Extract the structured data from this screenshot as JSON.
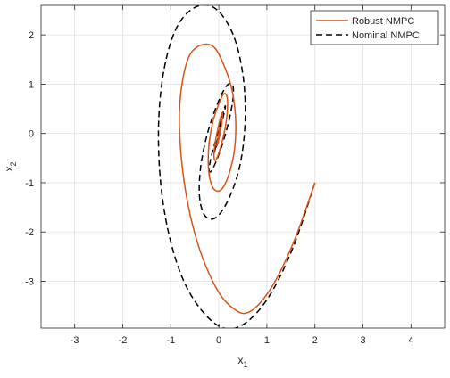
{
  "chart_data": {
    "type": "line",
    "title": "",
    "xlabel": {
      "base": "x",
      "sub": "1"
    },
    "ylabel": {
      "base": "x",
      "sub": "2"
    },
    "xlim": [
      -3.7,
      4.7
    ],
    "ylim": [
      -3.95,
      2.6
    ],
    "xticks": [
      -3,
      -2,
      -1,
      0,
      1,
      2,
      3,
      4
    ],
    "yticks": [
      -3,
      -2,
      -1,
      0,
      1,
      2
    ],
    "xtick_labels": [
      "-3",
      "-2",
      "-1",
      "0",
      "1",
      "2",
      "3",
      "4"
    ],
    "ytick_labels": [
      "-3",
      "-2",
      "-1",
      "0",
      "1",
      "2"
    ],
    "grid": true,
    "legend_position": "top-right",
    "colors": {
      "robust": "#d95319",
      "nominal": "#000000",
      "grid": "#e0e0e0",
      "axis": "#262626"
    },
    "series": [
      {
        "name": "Robust NMPC",
        "style": "solid",
        "x": [
          2.0,
          1.6,
          1.2,
          0.85,
          0.55,
          0.3,
          0.05,
          -0.2,
          -0.45,
          -0.65,
          -0.78,
          -0.82,
          -0.75,
          -0.6,
          -0.35,
          -0.1,
          0.1,
          0.27,
          0.35,
          0.33,
          0.22,
          0.07,
          -0.08,
          -0.18,
          -0.22,
          -0.2,
          -0.12,
          0.0,
          0.1,
          0.17,
          0.18,
          0.14,
          0.06,
          -0.02,
          -0.08,
          -0.1,
          -0.08,
          -0.03,
          0.03,
          0.07,
          0.08,
          0.06,
          0.02,
          -0.02,
          -0.04,
          -0.03,
          -0.01,
          0.01,
          0.02,
          0.01,
          0.0
        ],
        "y": [
          -1.0,
          -2.1,
          -2.95,
          -3.45,
          -3.65,
          -3.55,
          -3.3,
          -2.85,
          -2.2,
          -1.4,
          -0.5,
          0.4,
          1.1,
          1.6,
          1.8,
          1.75,
          1.4,
          0.9,
          0.3,
          -0.3,
          -0.8,
          -1.12,
          -1.15,
          -0.95,
          -0.6,
          -0.18,
          0.25,
          0.6,
          0.8,
          0.75,
          0.5,
          0.15,
          -0.2,
          -0.45,
          -0.55,
          -0.45,
          -0.22,
          0.05,
          0.3,
          0.42,
          0.38,
          0.2,
          -0.02,
          -0.2,
          -0.25,
          -0.18,
          -0.05,
          0.08,
          0.12,
          0.06,
          0.0
        ]
      },
      {
        "name": "Nominal NMPC",
        "style": "dashed",
        "x": [
          2.0,
          1.55,
          1.05,
          0.55,
          0.1,
          -0.35,
          -0.75,
          -1.05,
          -1.22,
          -1.25,
          -1.12,
          -0.85,
          -0.45,
          -0.05,
          0.3,
          0.5,
          0.55,
          0.45,
          0.22,
          -0.05,
          -0.28,
          -0.4,
          -0.38,
          -0.25,
          -0.05,
          0.15,
          0.28,
          0.3,
          0.22,
          0.08,
          -0.07,
          -0.17,
          -0.2,
          -0.14,
          -0.03,
          0.07,
          0.13,
          0.13,
          0.07,
          -0.01,
          -0.07,
          -0.09,
          -0.06,
          0.0,
          0.04,
          0.05,
          0.03,
          0.0
        ],
        "y": [
          -1.0,
          -2.3,
          -3.3,
          -3.85,
          -3.95,
          -3.6,
          -2.95,
          -2.0,
          -0.9,
          0.3,
          1.4,
          2.2,
          2.58,
          2.52,
          2.0,
          1.2,
          0.3,
          -0.6,
          -1.3,
          -1.7,
          -1.68,
          -1.3,
          -0.7,
          -0.05,
          0.55,
          0.95,
          1.0,
          0.75,
          0.3,
          -0.2,
          -0.6,
          -0.78,
          -0.7,
          -0.4,
          -0.02,
          0.35,
          0.55,
          0.5,
          0.25,
          -0.08,
          -0.32,
          -0.38,
          -0.25,
          -0.02,
          0.15,
          0.2,
          0.1,
          0.0
        ]
      }
    ]
  }
}
